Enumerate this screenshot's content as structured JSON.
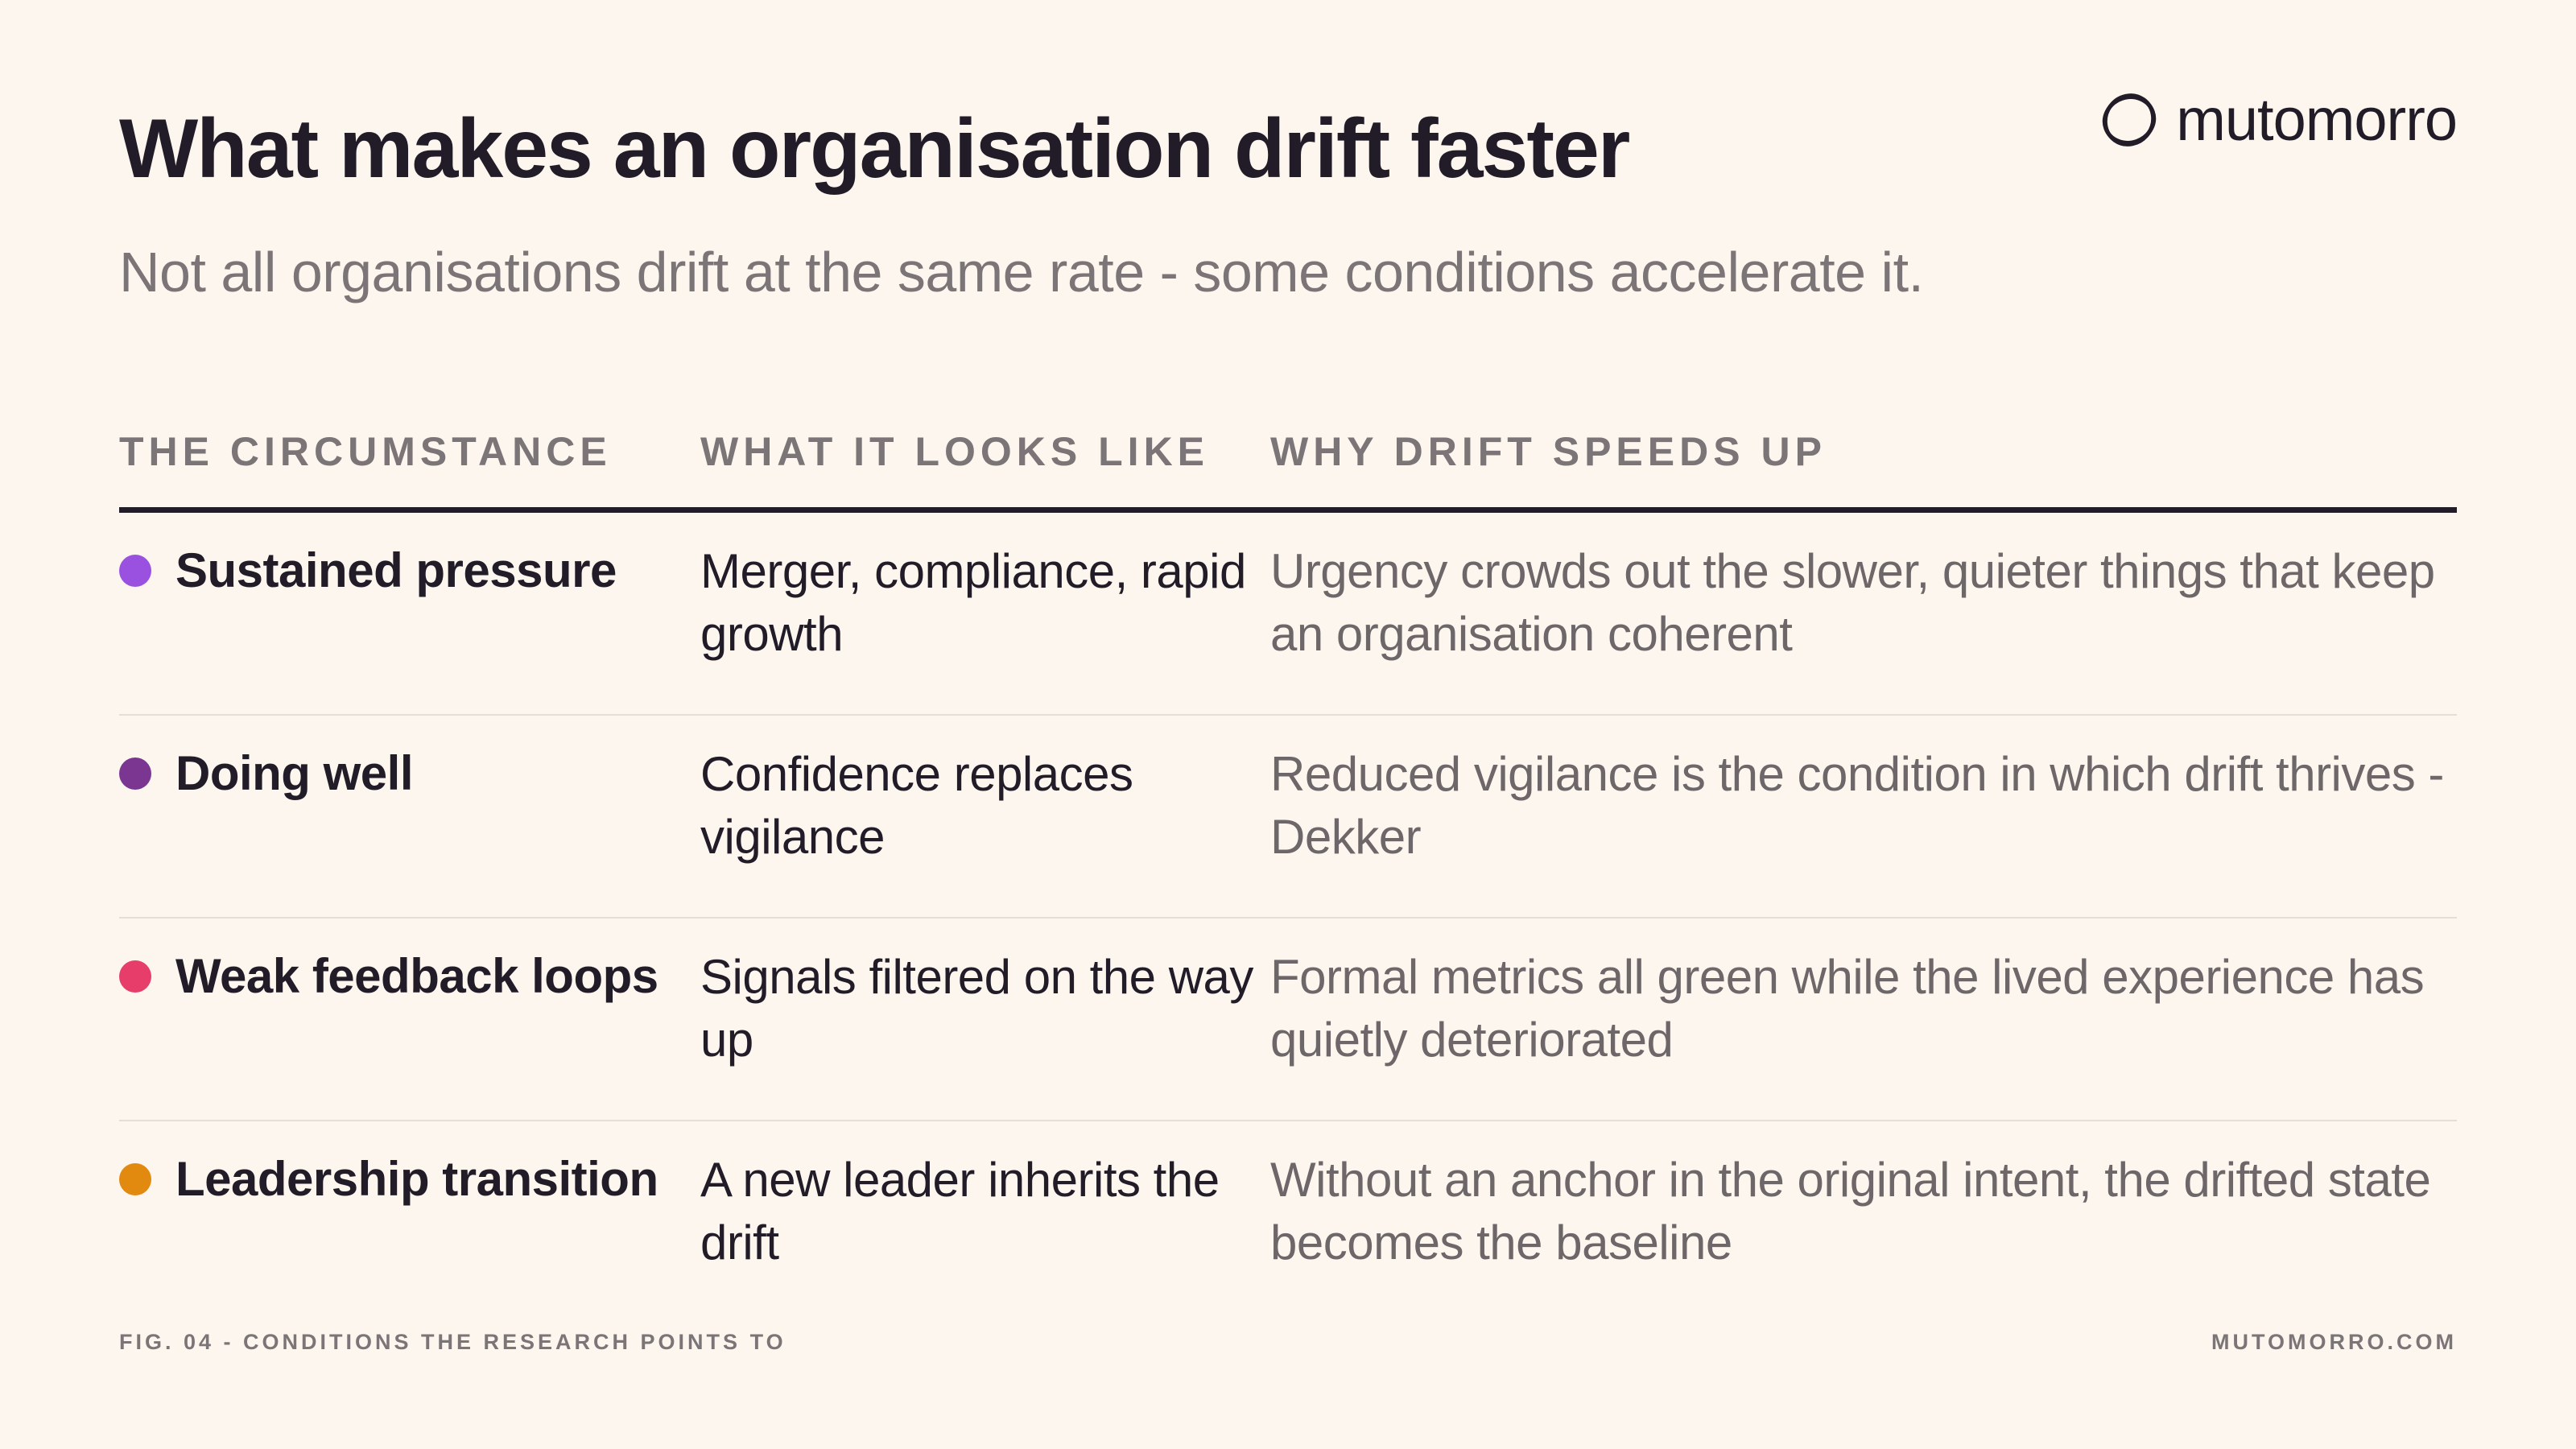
{
  "header": {
    "title": "What makes an organisation drift faster",
    "subtitle": "Not all organisations drift at the same rate - some conditions accelerate it."
  },
  "logo": {
    "icon": "mutomorro-logo-icon",
    "text": "mutomorro"
  },
  "table": {
    "columns": [
      "THE CIRCUMSTANCE",
      "WHAT IT LOOKS LIKE",
      "WHY DRIFT SPEEDS UP"
    ],
    "rows": [
      {
        "circumstance": "Sustained pressure",
        "looks_like": "Merger, compliance, rapid growth",
        "why": "Urgency crowds out the slower, quieter things that keep an organisation coherent",
        "color": "#9b51e0"
      },
      {
        "circumstance": "Doing well",
        "looks_like": "Confidence replaces vigilance",
        "why": "Reduced vigilance is the condition in which drift thrives - Dekker",
        "color": "#7b3691"
      },
      {
        "circumstance": "Weak feedback loops",
        "looks_like": "Signals filtered on the way up",
        "why": "Formal metrics all green while the lived experience has quietly deteriorated",
        "color": "#e63d6a"
      },
      {
        "circumstance": "Leadership transition",
        "looks_like": "A new leader inherits the drift",
        "why": "Without an anchor in the original intent, the drifted state becomes the baseline",
        "color": "#e28a0f"
      }
    ]
  },
  "footer": {
    "caption": "FIG. 04 - CONDITIONS THE RESEARCH POINTS TO",
    "site": "MUTOMORRO.COM"
  }
}
